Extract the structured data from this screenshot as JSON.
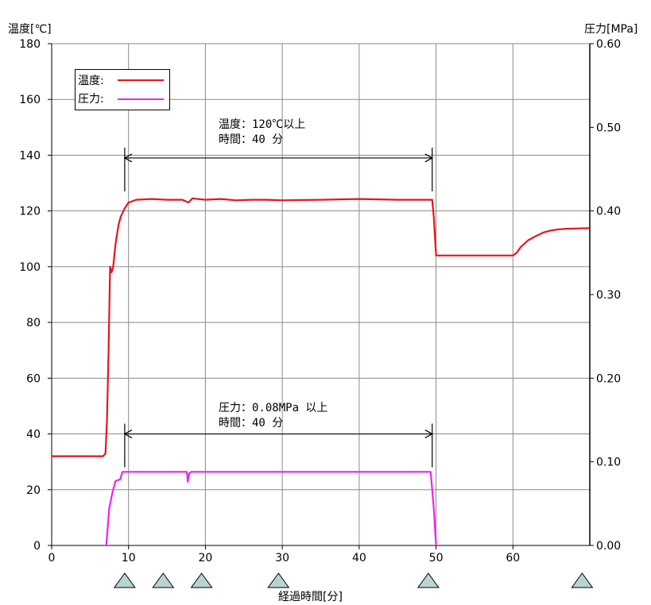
{
  "chart_data": {
    "type": "line",
    "left_axis_title": "温度[℃]",
    "right_axis_title": "圧力[MPa]",
    "xlabel": "経過時間[分]",
    "xlim": [
      0,
      70
    ],
    "ylim_left": [
      0,
      180
    ],
    "ylim_right": [
      0,
      0.6
    ],
    "x_ticks": [
      "0",
      "10",
      "20",
      "30",
      "40",
      "50",
      "60"
    ],
    "y_left_ticks": [
      "0",
      "20",
      "40",
      "60",
      "80",
      "100",
      "120",
      "140",
      "160",
      "180"
    ],
    "y_right_ticks": [
      "0.00",
      "0.10",
      "0.20",
      "0.30",
      "0.40",
      "0.50",
      "0.60"
    ],
    "grid": true,
    "legend_position": "top-left",
    "series": [
      {
        "name": "温度:",
        "axis": "left",
        "color": "#e8151b",
        "points": [
          [
            0,
            32
          ],
          [
            6.7,
            32
          ],
          [
            7,
            33
          ],
          [
            7.2,
            45
          ],
          [
            7.4,
            70
          ],
          [
            7.6,
            100
          ],
          [
            7.8,
            98
          ],
          [
            8,
            100
          ],
          [
            8.3,
            108
          ],
          [
            8.7,
            115
          ],
          [
            9,
            118
          ],
          [
            9.5,
            121
          ],
          [
            10,
            123
          ],
          [
            11,
            124
          ],
          [
            13,
            124.3
          ],
          [
            15,
            124
          ],
          [
            17,
            124
          ],
          [
            17.8,
            123
          ],
          [
            18.3,
            124.5
          ],
          [
            20,
            124
          ],
          [
            22,
            124.3
          ],
          [
            24,
            123.8
          ],
          [
            26,
            124
          ],
          [
            28,
            124
          ],
          [
            30,
            123.8
          ],
          [
            35,
            124
          ],
          [
            40,
            124.3
          ],
          [
            45,
            124
          ],
          [
            48,
            124
          ],
          [
            49.5,
            124
          ],
          [
            49.7,
            118
          ],
          [
            50,
            104
          ],
          [
            52,
            104
          ],
          [
            55,
            104
          ],
          [
            58,
            104
          ],
          [
            60,
            104
          ],
          [
            60.5,
            105
          ],
          [
            61,
            107
          ],
          [
            62,
            109.5
          ],
          [
            63,
            111
          ],
          [
            64,
            112.3
          ],
          [
            65,
            113
          ],
          [
            66,
            113.4
          ],
          [
            67,
            113.6
          ],
          [
            68,
            113.7
          ],
          [
            70,
            113.8
          ]
        ]
      },
      {
        "name": "圧力:",
        "axis": "right",
        "color": "#ee22ee",
        "points": [
          [
            7.1,
            0
          ],
          [
            7.5,
            0.045
          ],
          [
            7.9,
            0.063
          ],
          [
            8.3,
            0.077
          ],
          [
            8.9,
            0.079
          ],
          [
            9.2,
            0.088
          ],
          [
            17.6,
            0.088
          ],
          [
            17.7,
            0.076
          ],
          [
            17.9,
            0.086
          ],
          [
            18.1,
            0.088
          ],
          [
            30,
            0.088
          ],
          [
            40,
            0.088
          ],
          [
            49.3,
            0.088
          ],
          [
            49.7,
            0.045
          ],
          [
            50,
            0
          ]
        ]
      }
    ],
    "annotations": [
      {
        "line1": "温度：120℃以上",
        "line2": "時間：40 分",
        "x_start": 9.5,
        "x_end": 49.5,
        "y": 139,
        "axis": "left"
      },
      {
        "line1": "圧力：0.08MPa 以上",
        "line2": "時間：40 分",
        "x_start": 9.5,
        "x_end": 49.5,
        "y": 40,
        "axis": "left"
      }
    ],
    "markers": {
      "shape": "triangle",
      "color": "#b9d3d1",
      "x": [
        9.5,
        14.5,
        19.5,
        29.5,
        49,
        69
      ]
    }
  }
}
